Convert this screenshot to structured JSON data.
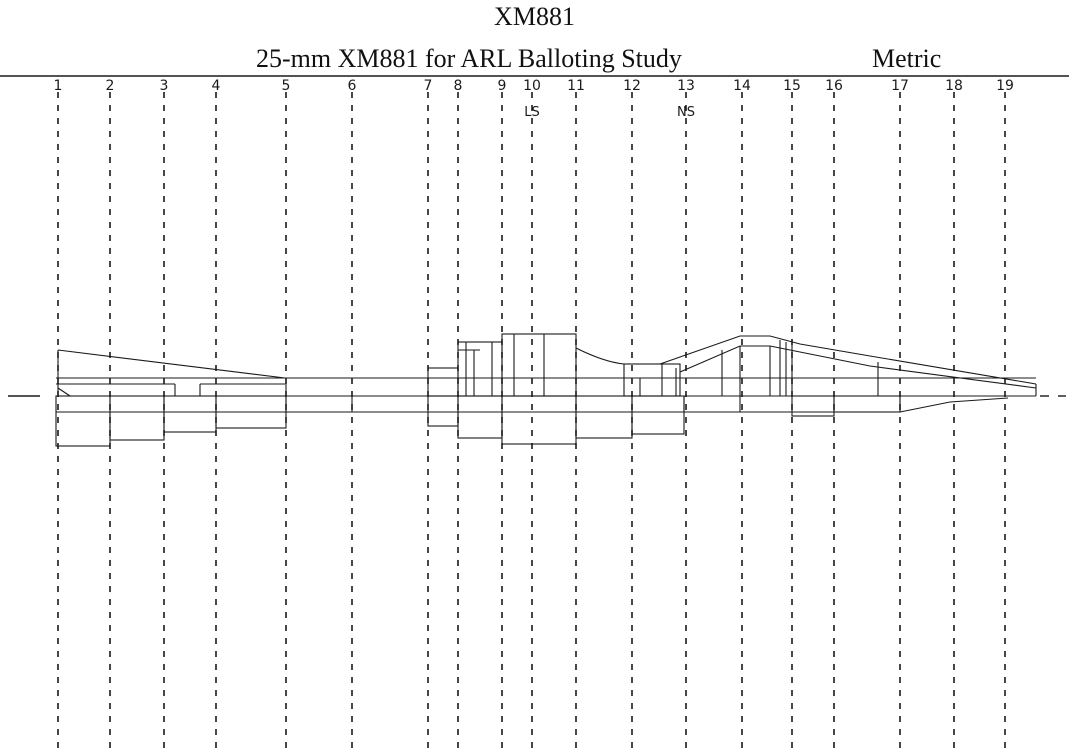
{
  "figure": {
    "title": "XM881",
    "subtitle": "25-mm XM881 for ARL Balloting Study",
    "units": "Metric"
  },
  "stations": [
    "1",
    "2",
    "3",
    "4",
    "5",
    "6",
    "7",
    "8",
    "9",
    "10",
    "11",
    "12",
    "13",
    "14",
    "15",
    "16",
    "17",
    "18",
    "19"
  ],
  "station_markers": [
    {
      "station": "10",
      "label": "LS"
    },
    {
      "station": "13",
      "label": "NS"
    }
  ],
  "colors": {
    "line": "#1a1a1a",
    "background": "#ffffff"
  }
}
